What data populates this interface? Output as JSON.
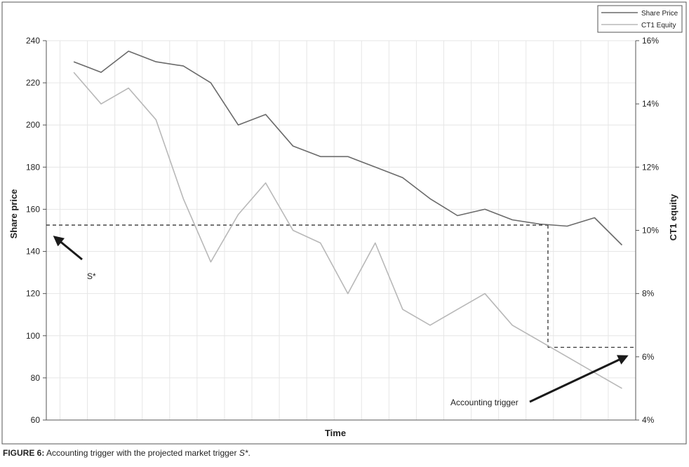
{
  "chart_data": {
    "type": "line",
    "xlabel": "Time",
    "ylabel": "Share price",
    "y2label": "CT1 equity",
    "ylim": [
      60,
      240
    ],
    "yticks": [
      60,
      80,
      100,
      120,
      140,
      160,
      180,
      200,
      220,
      240
    ],
    "y2lim": [
      4,
      16
    ],
    "y2ticks": [
      4,
      6,
      8,
      10,
      12,
      14,
      16
    ],
    "y2_tick_suffix": "%",
    "x": [
      1,
      2,
      3,
      4,
      5,
      6,
      7,
      8,
      9,
      10,
      11,
      12,
      13,
      14,
      15,
      16,
      17,
      18,
      19,
      20,
      21
    ],
    "xlim": [
      0,
      21.5
    ],
    "grid": true,
    "legend_position": "top-right",
    "series": [
      {
        "name": "Share Price",
        "axis": "left",
        "color": "#6a6a6a",
        "values": [
          230,
          225,
          235,
          230,
          228,
          220,
          200,
          205,
          190,
          185,
          185,
          180,
          175,
          165,
          157,
          160,
          155,
          153,
          152,
          156,
          143
        ]
      },
      {
        "name": "CT1 Equity",
        "axis": "right",
        "color": "#b8b8b8",
        "values": [
          15.0,
          14.0,
          14.5,
          13.5,
          11.0,
          9.0,
          10.5,
          11.5,
          10.0,
          9.6,
          8.0,
          9.6,
          7.5,
          7.0,
          7.5,
          8.0,
          7.0,
          6.5,
          6.0,
          5.5,
          5.0
        ]
      }
    ],
    "reference_lines": {
      "market_trigger_share_price": 152.5,
      "accounting_trigger_ct1": 6.3,
      "vertical_at_x": 18.3
    },
    "annotations": [
      {
        "text": "S*",
        "points_to": "market trigger level on left axis"
      },
      {
        "text": "Accounting trigger",
        "points_to": "accounting trigger level on right axis"
      }
    ]
  },
  "caption": {
    "label": "FIGURE 6:",
    "text": " Accounting trigger with the projected market trigger ",
    "symbol": "S*",
    "end": "."
  }
}
